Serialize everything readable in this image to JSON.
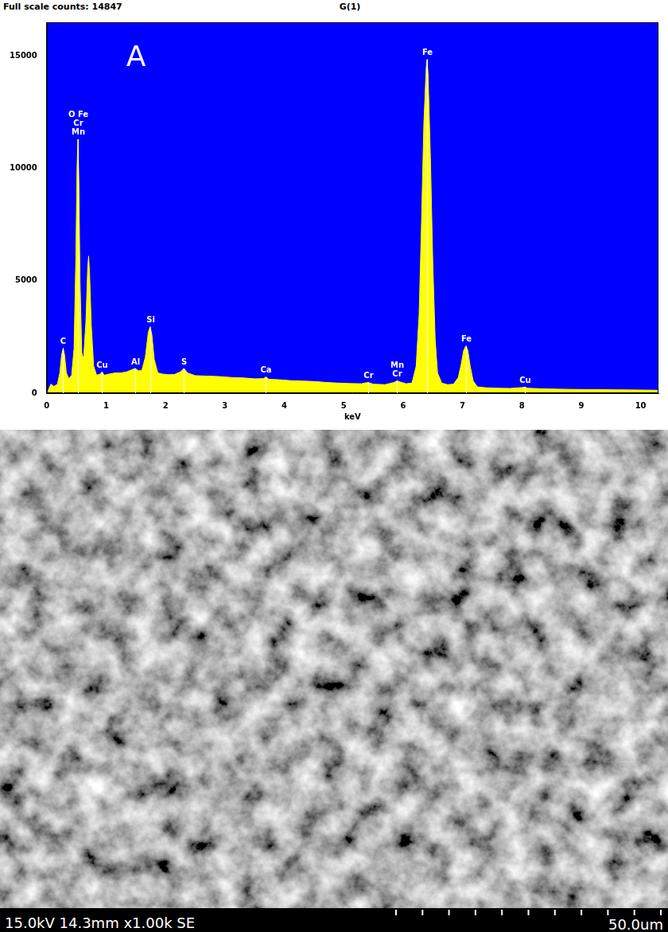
{
  "chart_data": {
    "type": "area",
    "title": "G(1)",
    "subtitle": "Full scale counts: 14847",
    "panel_label": "A",
    "x_label": "keV",
    "color": "#ffff00",
    "grid": false,
    "xlim": [
      0,
      10.3
    ],
    "xticks": [
      0,
      1,
      2,
      3,
      4,
      5,
      6,
      7,
      8,
      9,
      10
    ],
    "ylim": [
      0,
      16500
    ],
    "yticks": [
      0,
      5000,
      10000,
      15000
    ],
    "x": [
      0,
      0.03,
      0.07,
      0.12,
      0.18,
      0.22,
      0.25,
      0.277,
      0.3,
      0.33,
      0.37,
      0.42,
      0.46,
      0.49,
      0.51,
      0.525,
      0.54,
      0.56,
      0.59,
      0.62,
      0.66,
      0.69,
      0.705,
      0.72,
      0.75,
      0.79,
      0.84,
      0.9,
      0.93,
      0.97,
      1.05,
      1.15,
      1.25,
      1.35,
      1.44,
      1.49,
      1.54,
      1.6,
      1.66,
      1.71,
      1.74,
      1.77,
      1.81,
      1.87,
      1.95,
      2.05,
      2.15,
      2.25,
      2.31,
      2.37,
      2.5,
      2.7,
      2.9,
      3.1,
      3.3,
      3.5,
      3.65,
      3.69,
      3.74,
      3.9,
      4.1,
      4.3,
      4.5,
      4.7,
      4.9,
      5.1,
      5.3,
      5.41,
      5.5,
      5.7,
      5.85,
      5.9,
      5.95,
      6.05,
      6.15,
      6.22,
      6.27,
      6.31,
      6.35,
      6.39,
      6.403,
      6.42,
      6.46,
      6.5,
      6.54,
      6.58,
      6.65,
      6.75,
      6.85,
      6.93,
      6.98,
      7.02,
      7.058,
      7.09,
      7.13,
      7.18,
      7.25,
      7.4,
      7.6,
      7.8,
      8,
      8.05,
      8.1,
      8.4,
      8.8,
      9.2,
      9.6,
      10,
      10.3
    ],
    "values": [
      0,
      150,
      400,
      300,
      400,
      900,
      1700,
      2000,
      1700,
      900,
      650,
      800,
      2000,
      6000,
      10000,
      11300,
      9500,
      5000,
      1800,
      1500,
      3200,
      5600,
      6100,
      5400,
      3000,
      1200,
      800,
      850,
      950,
      800,
      850,
      900,
      900,
      950,
      1050,
      1100,
      1000,
      1000,
      1600,
      2700,
      2950,
      2600,
      1500,
      900,
      850,
      820,
      830,
      950,
      1100,
      900,
      780,
      760,
      740,
      700,
      680,
      640,
      650,
      720,
      620,
      600,
      560,
      540,
      520,
      480,
      450,
      430,
      420,
      480,
      400,
      380,
      480,
      550,
      500,
      420,
      450,
      1200,
      3500,
      7500,
      12000,
      14500,
      14847,
      14200,
      10500,
      5800,
      2400,
      900,
      450,
      380,
      400,
      700,
      1300,
      1900,
      2100,
      1900,
      1200,
      550,
      280,
      240,
      220,
      210,
      250,
      270,
      220,
      190,
      170,
      160,
      150,
      140,
      130
    ],
    "annotations": [
      {
        "text": [
          "C"
        ],
        "x": 0.277
      },
      {
        "text": [
          "O Fe",
          "Cr",
          "Mn"
        ],
        "x": 0.525
      },
      {
        "text": [
          "Cu"
        ],
        "x": 0.93
      },
      {
        "text": [
          "Al"
        ],
        "x": 1.49
      },
      {
        "text": [
          "Si"
        ],
        "x": 1.74
      },
      {
        "text": [
          "S"
        ],
        "x": 2.31
      },
      {
        "text": [
          "Ca"
        ],
        "x": 3.69
      },
      {
        "text": [
          "Cr"
        ],
        "x": 5.41
      },
      {
        "text": [
          "Mn",
          "Cr"
        ],
        "x": 5.9
      },
      {
        "text": [
          "Fe"
        ],
        "x": 6.403
      },
      {
        "text": [
          "Fe"
        ],
        "x": 7.058
      },
      {
        "text": [
          "Cu"
        ],
        "x": 8.05
      }
    ]
  },
  "micrograph": {
    "info": "15.0kV 14.3mm x1.00k SE",
    "scale_bar": {
      "label": "50.0um",
      "divisions": 10
    }
  }
}
